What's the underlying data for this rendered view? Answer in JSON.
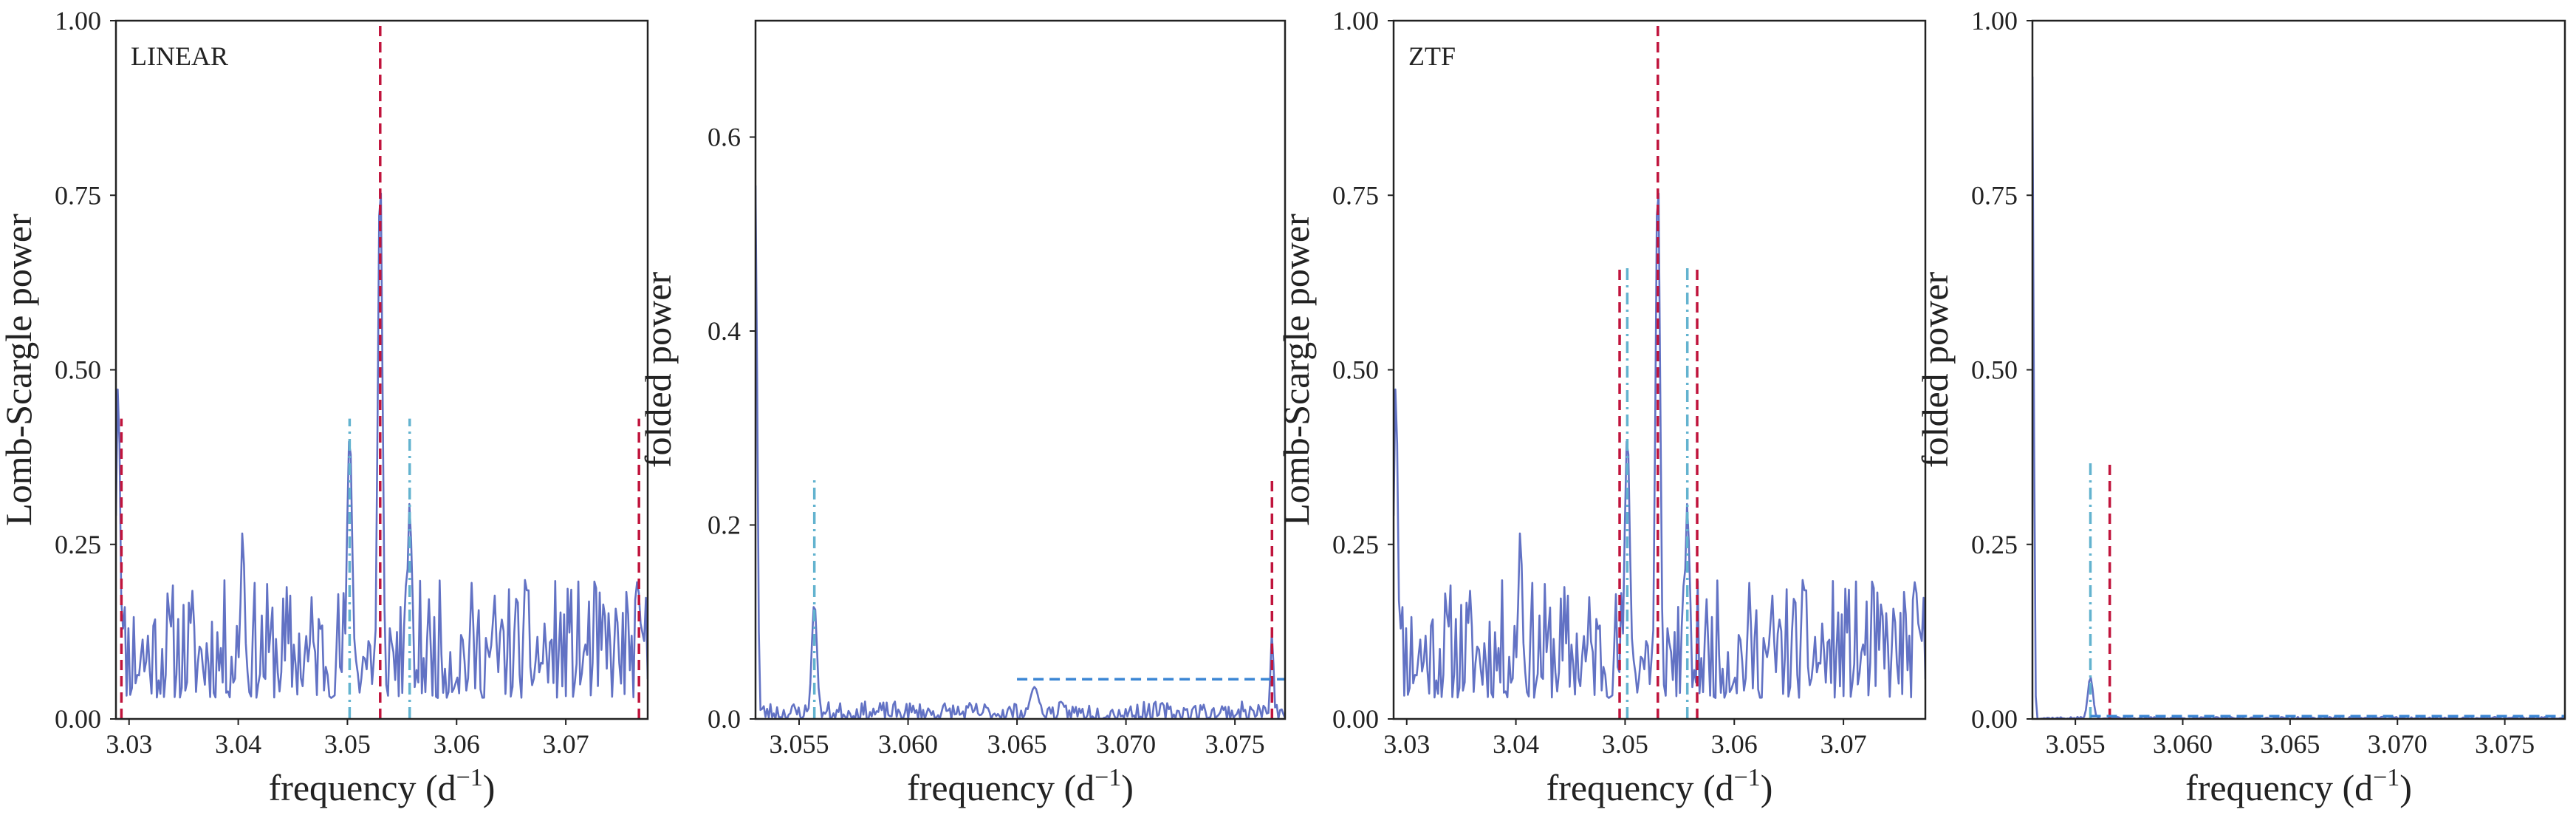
{
  "colors": {
    "periodogram_line": "#6272c4",
    "folded_line": "#6272c4",
    "red_marker": "#c0143c",
    "cyan_marker": "#63b3cf",
    "blue_dashed": "#3b86d4",
    "axis": "#222222"
  },
  "chart_data": [
    {
      "type": "line",
      "panel_label": "LINEAR",
      "xlabel": "frequency (d",
      "xlabel_sup": "−1",
      "xlabel_end": ")",
      "ylabel": "Lomb-Scargle power",
      "xlim": [
        3.0288,
        3.0775
      ],
      "ylim": [
        0,
        1
      ],
      "xticks": [
        3.03,
        3.04,
        3.05,
        3.06,
        3.07
      ],
      "xtick_labels": [
        "3.03",
        "3.04",
        "3.05",
        "3.06",
        "3.07"
      ],
      "yticks": [
        0,
        0.25,
        0.5,
        0.75,
        1.0
      ],
      "ytick_labels": [
        "0.00",
        "0.25",
        "0.50",
        "0.75",
        "1.00"
      ],
      "series": [
        {
          "kind": "noisy",
          "seed": 11,
          "x_range": [
            3.0288,
            3.0775
          ],
          "n": 300,
          "base_lo": 0.03,
          "base_hi": 0.2,
          "peaks": [
            {
              "x": 3.029,
              "y": 0.48,
              "w": 0.0002
            },
            {
              "x": 3.0404,
              "y": 0.27,
              "w": 0.0002
            },
            {
              "x": 3.0502,
              "y": 0.41,
              "w": 0.00025
            },
            {
              "x": 3.053,
              "y": 0.79,
              "w": 0.00022
            },
            {
              "x": 3.0557,
              "y": 0.31,
              "w": 0.00022
            },
            {
              "x": 3.0767,
              "y": 0.18,
              "w": 0.0002
            }
          ]
        }
      ],
      "vlines": [
        {
          "x": 3.0293,
          "y1": 0,
          "y2": 0.43,
          "style": "red_dashed"
        },
        {
          "x": 3.053,
          "y1": 0,
          "y2": 1.0,
          "style": "red_dashed"
        },
        {
          "x": 3.0767,
          "y1": 0,
          "y2": 0.43,
          "style": "red_dashed"
        },
        {
          "x": 3.0502,
          "y1": 0,
          "y2": 0.43,
          "style": "cyan_dashdot"
        },
        {
          "x": 3.0557,
          "y1": 0,
          "y2": 0.43,
          "style": "cyan_dashdot"
        }
      ],
      "hlines": []
    },
    {
      "type": "line",
      "panel_label": "",
      "xlabel": "frequency (d",
      "xlabel_sup": "−1",
      "xlabel_end": ")",
      "ylabel": "folded power",
      "xlim": [
        3.053,
        3.0773
      ],
      "ylim": [
        0,
        0.72
      ],
      "xticks": [
        3.055,
        3.06,
        3.065,
        3.07,
        3.075
      ],
      "xtick_labels": [
        "3.055",
        "3.060",
        "3.065",
        "3.070",
        "3.075"
      ],
      "yticks": [
        0,
        0.2,
        0.4,
        0.6
      ],
      "ytick_labels": [
        "0.0",
        "0.2",
        "0.4",
        "0.6"
      ],
      "series": [
        {
          "kind": "noisy",
          "seed": 23,
          "x_range": [
            3.053,
            3.0773
          ],
          "n": 320,
          "base_lo": 0.0,
          "base_hi": 0.018,
          "peaks": [
            {
              "x": 3.053,
              "y": 0.55,
              "w": 8e-05
            },
            {
              "x": 3.0557,
              "y": 0.12,
              "w": 0.00012
            },
            {
              "x": 3.0658,
              "y": 0.033,
              "w": 0.0002
            },
            {
              "x": 3.0767,
              "y": 0.09,
              "w": 7e-05
            }
          ]
        }
      ],
      "vlines": [
        {
          "x": 3.0557,
          "y1": 0,
          "y2": 0.25,
          "style": "cyan_dashdot"
        },
        {
          "x": 3.0767,
          "y1": 0,
          "y2": 0.25,
          "style": "red_dashed"
        }
      ],
      "hlines": [
        {
          "y": 0.041,
          "x1": 3.065,
          "x2": 3.0773,
          "style": "blue_dashed"
        }
      ]
    },
    {
      "type": "line",
      "panel_label": "ZTF",
      "xlabel": "frequency (d",
      "xlabel_sup": "−1",
      "xlabel_end": ")",
      "ylabel": "Lomb-Scargle power",
      "xlim": [
        3.0288,
        3.0775
      ],
      "ylim": [
        0,
        1
      ],
      "xticks": [
        3.03,
        3.04,
        3.05,
        3.06,
        3.07
      ],
      "xtick_labels": [
        "3.03",
        "3.04",
        "3.05",
        "3.06",
        "3.07"
      ],
      "yticks": [
        0,
        0.25,
        0.5,
        0.75,
        1.0
      ],
      "ytick_labels": [
        "0.00",
        "0.25",
        "0.50",
        "0.75",
        "1.00"
      ],
      "series": [
        {
          "kind": "noisy",
          "seed": 11,
          "x_range": [
            3.0288,
            3.0775
          ],
          "n": 300,
          "base_lo": 0.03,
          "base_hi": 0.2,
          "peaks": [
            {
              "x": 3.029,
              "y": 0.48,
              "w": 0.0002
            },
            {
              "x": 3.0404,
              "y": 0.27,
              "w": 0.0002
            },
            {
              "x": 3.0502,
              "y": 0.41,
              "w": 0.00025
            },
            {
              "x": 3.053,
              "y": 0.79,
              "w": 0.00022
            },
            {
              "x": 3.0557,
              "y": 0.31,
              "w": 0.00022
            },
            {
              "x": 3.0767,
              "y": 0.18,
              "w": 0.0002
            }
          ]
        }
      ],
      "vlines": [
        {
          "x": 3.0495,
          "y1": 0,
          "y2": 0.65,
          "style": "red_dashed"
        },
        {
          "x": 3.053,
          "y1": 0,
          "y2": 1.0,
          "style": "red_dashed"
        },
        {
          "x": 3.0566,
          "y1": 0,
          "y2": 0.65,
          "style": "red_dashed"
        },
        {
          "x": 3.0502,
          "y1": 0,
          "y2": 0.65,
          "style": "cyan_dashdot"
        },
        {
          "x": 3.0557,
          "y1": 0,
          "y2": 0.65,
          "style": "cyan_dashdot"
        }
      ],
      "hlines": []
    },
    {
      "type": "line",
      "panel_label": "",
      "xlabel": "frequency (d",
      "xlabel_sup": "−1",
      "xlabel_end": ")",
      "ylabel": "folded power",
      "xlim": [
        3.053,
        3.0778
      ],
      "ylim": [
        0,
        1
      ],
      "xticks": [
        3.055,
        3.06,
        3.065,
        3.07,
        3.075
      ],
      "xtick_labels": [
        "3.055",
        "3.060",
        "3.065",
        "3.070",
        "3.075"
      ],
      "yticks": [
        0,
        0.25,
        0.5,
        0.75,
        1.0
      ],
      "ytick_labels": [
        "0.00",
        "0.25",
        "0.50",
        "0.75",
        "1.00"
      ],
      "series": [
        {
          "kind": "noisy",
          "seed": 37,
          "x_range": [
            3.053,
            3.0778
          ],
          "n": 320,
          "base_lo": 0.0,
          "base_hi": 0.003,
          "peaks": [
            {
              "x": 3.053,
              "y": 0.92,
              "w": 6e-05
            },
            {
              "x": 3.0557,
              "y": 0.06,
              "w": 0.00012
            }
          ]
        }
      ],
      "vlines": [
        {
          "x": 3.0557,
          "y1": 0,
          "y2": 0.37,
          "style": "cyan_dashdot"
        },
        {
          "x": 3.0566,
          "y1": 0,
          "y2": 0.37,
          "style": "red_dashed"
        }
      ],
      "hlines": [
        {
          "y": 0.004,
          "x1": 3.0557,
          "x2": 3.0778,
          "style": "blue_dashed"
        }
      ]
    }
  ]
}
